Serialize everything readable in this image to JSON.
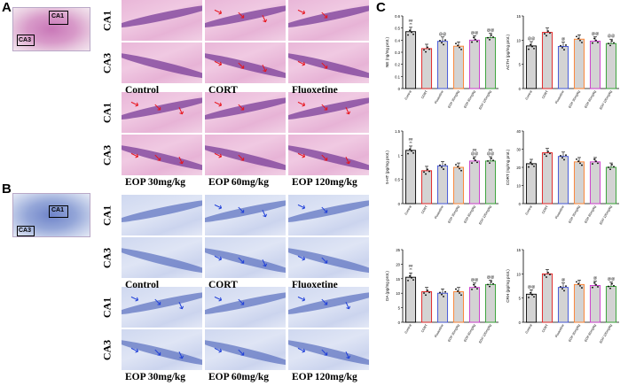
{
  "panels": {
    "a": "A",
    "b": "B",
    "c": "C"
  },
  "regions": {
    "ca1": "CA1",
    "ca3": "CA3"
  },
  "groups": [
    "Control",
    "CORT",
    "Fluoxetine",
    "EOP 30mg/kg",
    "EOP 60mg/kg",
    "EOP 120mg/kg"
  ],
  "chart_data": [
    {
      "type": "bar",
      "ylabel": "NE (ng/mg prot.)",
      "ylim": [
        0,
        0.6
      ],
      "ticks": [
        0,
        0.1,
        0.2,
        0.3,
        0.4,
        0.5,
        0.6
      ],
      "categories": [
        "Control",
        "CORT",
        "Fluoxetine",
        "EOP 30mg/kg",
        "EOP 60mg/kg",
        "EOP 120mg/kg"
      ],
      "values": [
        0.47,
        0.33,
        0.39,
        0.35,
        0.4,
        0.42
      ],
      "annotations": [
        "##\n**",
        "",
        "@@",
        "",
        "@@",
        "@@"
      ]
    },
    {
      "type": "bar",
      "ylabel": "ACTH (pg/mg prot.)",
      "ylim": [
        0,
        15
      ],
      "ticks": [
        0,
        5,
        10,
        15
      ],
      "categories": [
        "Control",
        "CORT",
        "Fluoxetine",
        "EOP 30mg/kg",
        "EOP 60mg/kg",
        "EOP 120mg/kg"
      ],
      "values": [
        8.8,
        11.6,
        8.7,
        10.2,
        9.8,
        9.3
      ],
      "annotations": [
        "@@",
        "",
        "@",
        "",
        "@@",
        "@@"
      ]
    },
    {
      "type": "bar",
      "ylabel": "5-HT (pg/mg prot.)",
      "ylim": [
        0,
        1.5
      ],
      "ticks": [
        0,
        0.5,
        1.0,
        1.5
      ],
      "categories": [
        "Control",
        "CORT",
        "Fluoxetine",
        "EOP 30mg/kg",
        "EOP 60mg/kg",
        "EOP 120mg/kg"
      ],
      "values": [
        1.1,
        0.68,
        0.78,
        0.75,
        0.88,
        0.88
      ],
      "annotations": [
        "##\n**",
        "",
        "",
        "",
        "##\n@@",
        "##\n@@"
      ]
    },
    {
      "type": "bar",
      "ylabel": "CORT (ng/mg prot.)",
      "ylim": [
        0,
        40
      ],
      "ticks": [
        0,
        10,
        20,
        30,
        40
      ],
      "categories": [
        "Control",
        "CORT",
        "Fluoxetine",
        "EOP 30mg/kg",
        "EOP 60mg/kg",
        "EOP 120mg/kg"
      ],
      "values": [
        22,
        28,
        26,
        23,
        23,
        20
      ],
      "annotations": [
        "",
        "",
        "",
        "",
        "",
        ""
      ]
    },
    {
      "type": "bar",
      "ylabel": "DA (pg/mg prot.)",
      "ylim": [
        0,
        25
      ],
      "ticks": [
        0,
        5,
        10,
        15,
        20,
        25
      ],
      "categories": [
        "Control",
        "CORT",
        "Fluoxetine",
        "EOP 30mg/kg",
        "EOP 60mg/kg",
        "EOP 120mg/kg"
      ],
      "values": [
        15.5,
        10.5,
        10.0,
        10.5,
        12.0,
        13.0
      ],
      "annotations": [
        "##\n**",
        "",
        "",
        "",
        "@@",
        "@@"
      ]
    },
    {
      "type": "bar",
      "ylabel": "CRH (pg/mg prot.)",
      "ylim": [
        0,
        15
      ],
      "ticks": [
        0,
        5,
        10,
        15
      ],
      "categories": [
        "Control",
        "CORT",
        "Fluoxetine",
        "EOP 30mg/kg",
        "EOP 60mg/kg",
        "EOP 120mg/kg"
      ],
      "values": [
        5.8,
        10.0,
        7.2,
        7.8,
        7.6,
        7.4
      ],
      "annotations": [
        "@@",
        "",
        "@",
        "",
        "@",
        "@@"
      ]
    }
  ],
  "colors": {
    "bar_fill": "#d3d3d3",
    "control": "#000000",
    "cort": "#e41a1c",
    "fluoxetine": "#3b4fd8",
    "eop30": "#ff7f2a",
    "eop60": "#cc33cc",
    "eop120": "#2ca02c",
    "he_stain": "#e9b6d8",
    "nissl_stain": "#cfd8f0",
    "arrow_red": "#e8141c",
    "arrow_blue": "#1f3fd9"
  }
}
